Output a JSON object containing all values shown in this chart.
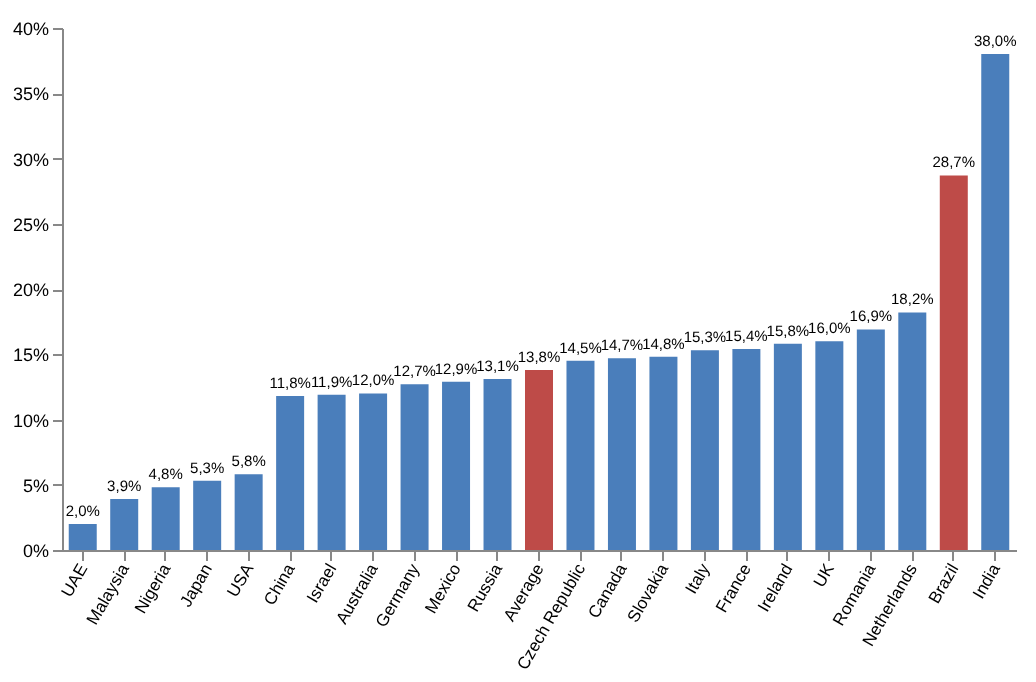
{
  "chart_data": {
    "type": "bar",
    "categories": [
      "UAE",
      "Malaysia",
      "Nigeria",
      "Japan",
      "USA",
      "China",
      "Israel",
      "Australia",
      "Germany",
      "Mexico",
      "Russia",
      "Average",
      "Czech Republic",
      "Canada",
      "Slovakia",
      "Italy",
      "France",
      "Ireland",
      "UK",
      "Romania",
      "Netherlands",
      "Brazil",
      "India"
    ],
    "values": [
      2.0,
      3.9,
      4.8,
      5.3,
      5.8,
      11.8,
      11.9,
      12.0,
      12.7,
      12.9,
      13.1,
      13.8,
      14.5,
      14.7,
      14.8,
      15.3,
      15.4,
      15.8,
      16.0,
      16.9,
      18.2,
      28.7,
      38.0
    ],
    "colors": [
      "#4a7ebb",
      "#4a7ebb",
      "#4a7ebb",
      "#4a7ebb",
      "#4a7ebb",
      "#4a7ebb",
      "#4a7ebb",
      "#4a7ebb",
      "#4a7ebb",
      "#4a7ebb",
      "#4a7ebb",
      "#be4b48",
      "#4a7ebb",
      "#4a7ebb",
      "#4a7ebb",
      "#4a7ebb",
      "#4a7ebb",
      "#4a7ebb",
      "#4a7ebb",
      "#4a7ebb",
      "#4a7ebb",
      "#be4b48",
      "#4a7ebb"
    ],
    "value_labels": [
      "2,0%",
      "3,9%",
      "4,8%",
      "5,3%",
      "5,8%",
      "11,8%",
      "11,9%",
      "12,0%",
      "12,7%",
      "12,9%",
      "13,1%",
      "13,8%",
      "14,5%",
      "14,7%",
      "14,8%",
      "15,3%",
      "15,4%",
      "15,8%",
      "16,0%",
      "16,9%",
      "18,2%",
      "28,7%",
      "38,0%"
    ],
    "ylim": [
      0,
      40
    ],
    "yticks": [
      {
        "value": 0,
        "label": "0%"
      },
      {
        "value": 5,
        "label": "5%"
      },
      {
        "value": 10,
        "label": "10%"
      },
      {
        "value": 15,
        "label": "15%"
      },
      {
        "value": 20,
        "label": "20%"
      },
      {
        "value": 25,
        "label": "25%"
      },
      {
        "value": 30,
        "label": "30%"
      },
      {
        "value": 35,
        "label": "35%"
      },
      {
        "value": 40,
        "label": "40%"
      }
    ],
    "grid": false
  }
}
